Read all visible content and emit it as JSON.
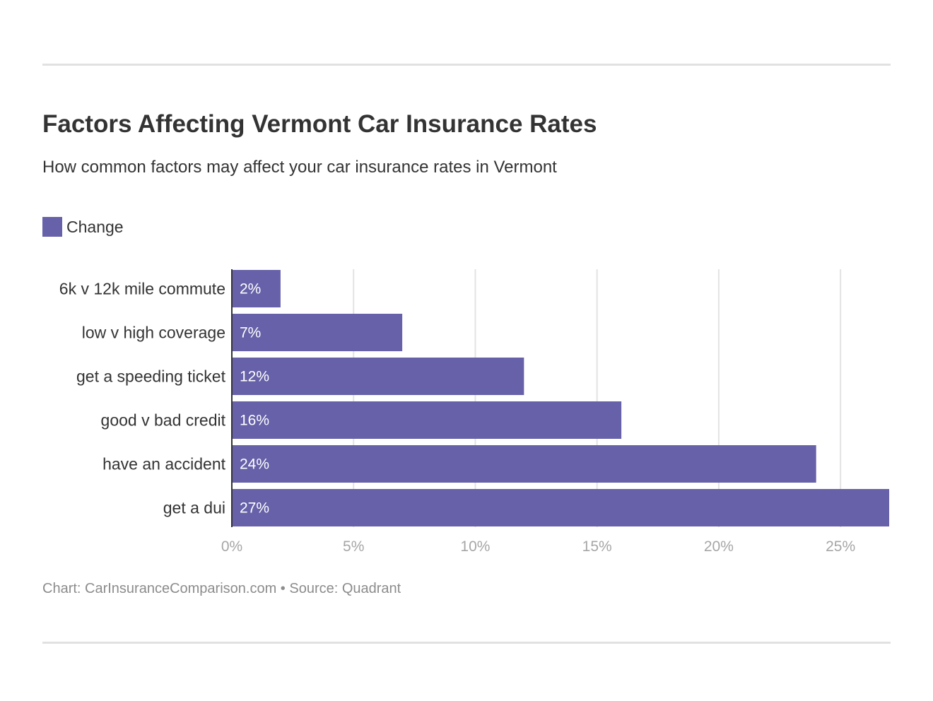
{
  "header": {
    "title": "Factors Affecting Vermont Car Insurance Rates",
    "subtitle": "How common factors may affect your car insurance rates in Vermont"
  },
  "legend": {
    "label": "Change",
    "color": "#6661a8"
  },
  "chart_data": {
    "type": "bar",
    "orientation": "horizontal",
    "categories": [
      "6k v 12k mile commute",
      "low v high coverage",
      "get a speeding ticket",
      "good v bad credit",
      "have an accident",
      "get a dui"
    ],
    "series": [
      {
        "name": "Change",
        "values": [
          2,
          7,
          12,
          16,
          24,
          27
        ],
        "labels": [
          "2%",
          "7%",
          "12%",
          "16%",
          "24%",
          "27%"
        ],
        "color": "#6661a8"
      }
    ],
    "xticks": [
      "0%",
      "5%",
      "10%",
      "15%",
      "20%",
      "25%"
    ],
    "xtick_values": [
      0,
      5,
      10,
      15,
      20,
      25
    ],
    "xlim": [
      0,
      27
    ],
    "grid": true,
    "legend_position": "top-left"
  },
  "footer": {
    "credit": "Chart: CarInsuranceComparison.com • Source: Quadrant"
  }
}
